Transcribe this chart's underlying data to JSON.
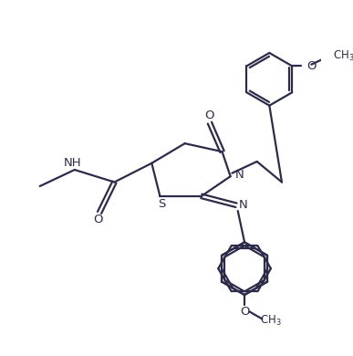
{
  "bg_color": "#ffffff",
  "line_color": "#2c2c4a",
  "line_width": 1.6,
  "font_size": 9.5,
  "figsize": [
    3.87,
    3.9
  ],
  "dpi": 100,
  "xlim": [
    0,
    10
  ],
  "ylim": [
    0,
    10
  ]
}
